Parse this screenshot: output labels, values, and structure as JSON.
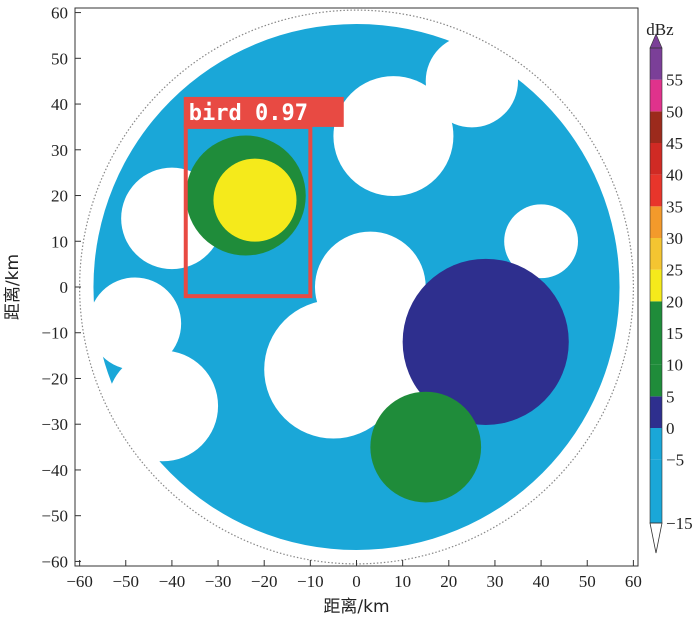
{
  "chart_data": {
    "type": "heatmap",
    "title": "",
    "xlabel": "距离/km",
    "ylabel": "距离/km",
    "xlim": [
      -61,
      61
    ],
    "ylim": [
      -61,
      61
    ],
    "x_ticks": [
      -60,
      -50,
      -40,
      -30,
      -20,
      -10,
      0,
      10,
      20,
      30,
      40,
      50,
      60
    ],
    "y_ticks": [
      60,
      50,
      40,
      30,
      20,
      10,
      0,
      -10,
      -20,
      -30,
      -40,
      -50,
      -60
    ],
    "x_tick_labels": [
      "−60",
      "−50",
      "−40",
      "−30",
      "−20",
      "−10",
      "0",
      "10",
      "20",
      "30",
      "40",
      "50",
      "60"
    ],
    "y_tick_labels": [
      "60",
      "50",
      "40",
      "30",
      "20",
      "10",
      "0",
      "−10",
      "−20",
      "−30",
      "−40",
      "−50",
      "−60"
    ],
    "radar_range_km": 60,
    "colorbar": {
      "unit": "dBz",
      "min": -15,
      "max": 60,
      "tick_values": [
        55,
        50,
        45,
        40,
        35,
        30,
        25,
        20,
        15,
        10,
        5,
        0,
        -5,
        -15
      ],
      "tick_labels": [
        "55",
        "50",
        "45",
        "40",
        "35",
        "30",
        "25",
        "20",
        "15",
        "10",
        "5",
        "0",
        "−5",
        "−15"
      ],
      "bins": [
        {
          "from": -15,
          "to": -5,
          "color": "#1aa7d8"
        },
        {
          "from": -5,
          "to": 0,
          "color": "#1aa7d8"
        },
        {
          "from": 0,
          "to": 5,
          "color": "#2e2f8e"
        },
        {
          "from": 5,
          "to": 10,
          "color": "#1f8c3a"
        },
        {
          "from": 10,
          "to": 15,
          "color": "#1f8c3a"
        },
        {
          "from": 15,
          "to": 20,
          "color": "#1f8c3a"
        },
        {
          "from": 20,
          "to": 25,
          "color": "#f5ea1b"
        },
        {
          "from": 25,
          "to": 30,
          "color": "#f4c531"
        },
        {
          "from": 30,
          "to": 35,
          "color": "#f39a2b"
        },
        {
          "from": 35,
          "to": 40,
          "color": "#e8352b"
        },
        {
          "from": 40,
          "to": 45,
          "color": "#d02a24"
        },
        {
          "from": 45,
          "to": 50,
          "color": "#9c2a1c"
        },
        {
          "from": 50,
          "to": 55,
          "color": "#e0328c"
        },
        {
          "from": 55,
          "to": 60,
          "color": "#7b3f98"
        }
      ]
    },
    "echo_regions": [
      {
        "name": "weak-echo-disk",
        "cx": 0,
        "cy": 0,
        "r": 57,
        "color": "#1aa7d8"
      },
      {
        "name": "clear-air-northwest",
        "cx": -40,
        "cy": 15,
        "r": 11,
        "color": "#ffffff"
      },
      {
        "name": "clear-air-west",
        "cx": -48,
        "cy": -8,
        "r": 10,
        "color": "#ffffff"
      },
      {
        "name": "clear-air-southwest",
        "cx": -42,
        "cy": -26,
        "r": 12,
        "color": "#ffffff"
      },
      {
        "name": "clear-air-center-south",
        "cx": -5,
        "cy": -18,
        "r": 15,
        "color": "#ffffff"
      },
      {
        "name": "clear-air-center-south-2",
        "cx": 10,
        "cy": -14,
        "r": 12,
        "color": "#ffffff"
      },
      {
        "name": "clear-air-north",
        "cx": 8,
        "cy": 33,
        "r": 13,
        "color": "#ffffff"
      },
      {
        "name": "clear-air-north-2",
        "cx": 25,
        "cy": 45,
        "r": 10,
        "color": "#ffffff"
      },
      {
        "name": "clear-air-center",
        "cx": 3,
        "cy": 0,
        "r": 12,
        "color": "#ffffff"
      },
      {
        "name": "clear-air-east",
        "cx": 40,
        "cy": 10,
        "r": 8,
        "color": "#ffffff"
      },
      {
        "name": "moderate-echo-east",
        "cx": 28,
        "cy": -12,
        "r": 18,
        "color": "#2e2f8e"
      },
      {
        "name": "moderate-echo-south",
        "cx": 15,
        "cy": -35,
        "r": 12,
        "color": "#1f8c3a"
      },
      {
        "name": "bird-echo-green",
        "cx": -24,
        "cy": 20,
        "r": 13,
        "color": "#1f8c3a"
      },
      {
        "name": "bird-echo-yellow",
        "cx": -22,
        "cy": 19,
        "r": 9,
        "color": "#f5ea1b"
      }
    ],
    "detection": {
      "label": "bird 0.97",
      "box_km": {
        "x_min": -37,
        "x_max": -10,
        "y_min": -2,
        "y_max": 35
      },
      "color": "#e84a43"
    }
  }
}
